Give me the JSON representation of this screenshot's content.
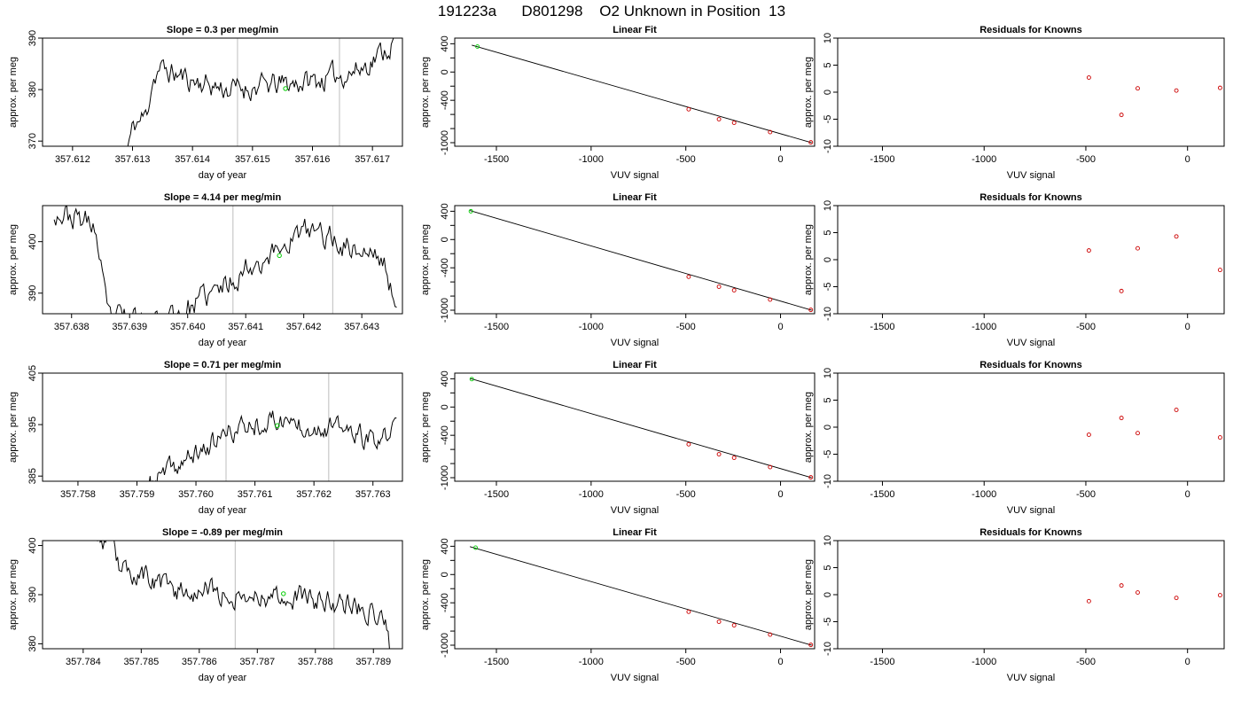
{
  "figure": {
    "suptitle": "191223a      D801298    O2 Unknown in Position  13",
    "colors": {
      "trace": "#000000",
      "marker_current": "#00cc00",
      "marker_known": "#cc0000",
      "gridline": "#c8c8c8"
    }
  },
  "chart_data": [
    {
      "type": "line",
      "row": 0,
      "col": 0,
      "title": "Slope =  0.3  per meg/min",
      "xlabel": "day of year",
      "ylabel": "approx. per meg",
      "xlim": [
        357.6115,
        357.6175
      ],
      "ylim": [
        369,
        390
      ],
      "xticks": [
        "357.612",
        "357.613",
        "357.614",
        "357.615",
        "357.616",
        "357.617"
      ],
      "yticks": [
        "370",
        "380",
        "390"
      ],
      "vlines": [
        357.61475,
        357.61645
      ],
      "marker": {
        "x": 357.61555,
        "y": 380.2
      },
      "trace": {
        "seed": 11,
        "x0": 357.6129,
        "x1": 357.61745,
        "n": 200,
        "vol": 1.2,
        "knots": [
          [
            357.6129,
            368
          ],
          [
            357.61302,
            373
          ],
          [
            357.61323,
            375
          ],
          [
            357.61333,
            382
          ],
          [
            357.61345,
            384
          ],
          [
            357.61395,
            382
          ],
          [
            357.6146,
            380
          ],
          [
            357.6155,
            381
          ],
          [
            357.6162,
            382
          ],
          [
            357.6168,
            384
          ],
          [
            357.61745,
            390
          ]
        ]
      }
    },
    {
      "type": "scatter_fit",
      "row": 0,
      "col": 1,
      "title": "Linear Fit",
      "xlabel": "VUV signal",
      "ylabel": "approx. per meg",
      "xlim": [
        -1720,
        180
      ],
      "ylim": [
        -1050,
        480
      ],
      "xticks": [
        "-1500",
        "-1000",
        "-500",
        "0"
      ],
      "yticks": [
        "-1000",
        "-400",
        "0",
        "400"
      ],
      "fit_line": [
        [
          -1630,
          380
        ],
        [
          165,
          -1000
        ]
      ],
      "points_known": [
        [
          -485,
          -527
        ],
        [
          -325,
          -668
        ],
        [
          -245,
          -718
        ],
        [
          -55,
          -850
        ],
        [
          160,
          -995
        ]
      ],
      "point_unknown": [
        -1600,
        360
      ]
    },
    {
      "type": "scatter",
      "row": 0,
      "col": 2,
      "title": "Residuals for Knowns",
      "xlabel": "VUV signal",
      "ylabel": "approx. per meg",
      "xlim": [
        -1720,
        180
      ],
      "ylim": [
        -10,
        10
      ],
      "xticks": [
        "-1500",
        "-1000",
        "-500",
        "0"
      ],
      "yticks": [
        "-10",
        "-5",
        "0",
        "5",
        "10"
      ],
      "points": [
        [
          -485,
          2.7
        ],
        [
          -325,
          -4.2
        ],
        [
          -245,
          0.7
        ],
        [
          -55,
          0.3
        ],
        [
          160,
          0.8
        ]
      ]
    },
    {
      "type": "line",
      "row": 1,
      "col": 0,
      "title": "Slope =  4.14  per meg/min",
      "xlabel": "day of year",
      "ylabel": "approx. per meg",
      "xlim": [
        357.6375,
        357.6437
      ],
      "ylim": [
        386,
        407
      ],
      "xticks": [
        "357.638",
        "357.639",
        "357.640",
        "357.641",
        "357.642",
        "357.643"
      ],
      "yticks": [
        "390",
        "400"
      ],
      "vlines": [
        357.64078,
        357.6425
      ],
      "marker": {
        "x": 357.64158,
        "y": 397.3
      },
      "trace": {
        "seed": 23,
        "x0": 357.6377,
        "x1": 357.6436,
        "n": 220,
        "vol": 1.3,
        "knots": [
          [
            357.6377,
            406
          ],
          [
            357.6382,
            404
          ],
          [
            357.6384,
            403
          ],
          [
            357.6385,
            395
          ],
          [
            357.63862,
            385
          ],
          [
            357.6392,
            385
          ],
          [
            357.6396,
            385
          ],
          [
            357.6398,
            386
          ],
          [
            357.64,
            387
          ],
          [
            357.6403,
            389
          ],
          [
            357.6406,
            391
          ],
          [
            357.641,
            395
          ],
          [
            357.6415,
            398
          ],
          [
            357.6418,
            401
          ],
          [
            357.6422,
            402
          ],
          [
            357.6428,
            399
          ],
          [
            357.6433,
            397
          ],
          [
            357.64345,
            394
          ],
          [
            357.6436,
            385
          ]
        ]
      }
    },
    {
      "type": "scatter_fit",
      "row": 1,
      "col": 1,
      "title": "Linear Fit",
      "xlabel": "VUV signal",
      "ylabel": "approx. per meg",
      "xlim": [
        -1720,
        180
      ],
      "ylim": [
        -1050,
        480
      ],
      "xticks": [
        "-1500",
        "-1000",
        "-500",
        "0"
      ],
      "yticks": [
        "-1000",
        "-400",
        "0",
        "400"
      ],
      "fit_line": [
        [
          -1640,
          410
        ],
        [
          165,
          -1000
        ]
      ],
      "points_known": [
        [
          -485,
          -527
        ],
        [
          -325,
          -668
        ],
        [
          -245,
          -718
        ],
        [
          -55,
          -850
        ],
        [
          160,
          -995
        ]
      ],
      "point_unknown": [
        -1635,
        400
      ]
    },
    {
      "type": "scatter",
      "row": 1,
      "col": 2,
      "title": "Residuals for Knowns",
      "xlabel": "VUV signal",
      "ylabel": "approx. per meg",
      "xlim": [
        -1720,
        180
      ],
      "ylim": [
        -10,
        10
      ],
      "xticks": [
        "-1500",
        "-1000",
        "-500",
        "0"
      ],
      "yticks": [
        "-10",
        "-5",
        "0",
        "5",
        "10"
      ],
      "points": [
        [
          -485,
          1.7
        ],
        [
          -325,
          -5.8
        ],
        [
          -245,
          2.1
        ],
        [
          -55,
          4.3
        ],
        [
          160,
          -1.9
        ]
      ]
    },
    {
      "type": "line",
      "row": 2,
      "col": 0,
      "title": "Slope =  0.71  per meg/min",
      "xlabel": "day of year",
      "ylabel": "approx. per meg",
      "xlim": [
        357.7574,
        357.7635
      ],
      "ylim": [
        384,
        405
      ],
      "xticks": [
        "357.758",
        "357.759",
        "357.760",
        "357.761",
        "357.762",
        "357.763"
      ],
      "yticks": [
        "385",
        "395",
        "405"
      ],
      "vlines": [
        357.76051,
        357.76225
      ],
      "marker": {
        "x": 357.76138,
        "y": 394.8
      },
      "trace": {
        "seed": 37,
        "x0": 357.7592,
        "x1": 357.7634,
        "n": 190,
        "vol": 1.1,
        "knots": [
          [
            357.7592,
            383
          ],
          [
            357.7594,
            385
          ],
          [
            357.7597,
            387
          ],
          [
            357.7601,
            390
          ],
          [
            357.7605,
            393
          ],
          [
            357.7609,
            395
          ],
          [
            357.7614,
            396
          ],
          [
            357.7619,
            395
          ],
          [
            357.7625,
            394
          ],
          [
            357.7629,
            392
          ],
          [
            357.7631,
            391
          ],
          [
            357.7634,
            395
          ]
        ]
      }
    },
    {
      "type": "scatter_fit",
      "row": 2,
      "col": 1,
      "title": "Linear Fit",
      "xlabel": "VUV signal",
      "ylabel": "approx. per meg",
      "xlim": [
        -1720,
        180
      ],
      "ylim": [
        -1050,
        480
      ],
      "xticks": [
        "-1500",
        "-1000",
        "-500",
        "0"
      ],
      "yticks": [
        "-1000",
        "-400",
        "0",
        "400"
      ],
      "fit_line": [
        [
          -1640,
          405
        ],
        [
          165,
          -1000
        ]
      ],
      "points_known": [
        [
          -485,
          -527
        ],
        [
          -325,
          -668
        ],
        [
          -245,
          -718
        ],
        [
          -55,
          -850
        ],
        [
          160,
          -995
        ]
      ],
      "point_unknown": [
        -1630,
        395
      ]
    },
    {
      "type": "scatter",
      "row": 2,
      "col": 2,
      "title": "Residuals for Knowns",
      "xlabel": "VUV signal",
      "ylabel": "approx. per meg",
      "xlim": [
        -1720,
        180
      ],
      "ylim": [
        -10,
        10
      ],
      "xticks": [
        "-1500",
        "-1000",
        "-500",
        "0"
      ],
      "yticks": [
        "-10",
        "-5",
        "0",
        "5",
        "10"
      ],
      "points": [
        [
          -485,
          -1.4
        ],
        [
          -325,
          1.7
        ],
        [
          -245,
          -1.1
        ],
        [
          -55,
          3.2
        ],
        [
          160,
          -1.9
        ]
      ]
    },
    {
      "type": "line",
      "row": 3,
      "col": 0,
      "title": "Slope =  -0.89  per meg/min",
      "xlabel": "day of year",
      "ylabel": "approx. per meg",
      "xlim": [
        357.7833,
        357.7895
      ],
      "ylim": [
        379,
        401
      ],
      "xticks": [
        "357.784",
        "357.785",
        "357.786",
        "357.787",
        "357.788",
        "357.789"
      ],
      "yticks": [
        "380",
        "390",
        "400"
      ],
      "vlines": [
        357.78662,
        357.78832
      ],
      "marker": {
        "x": 357.78745,
        "y": 390.2
      },
      "trace": {
        "seed": 53,
        "x0": 357.7842,
        "x1": 357.7893,
        "n": 220,
        "vol": 1.2,
        "knots": [
          [
            357.7842,
            403
          ],
          [
            357.7845,
            399
          ],
          [
            357.78465,
            395
          ],
          [
            357.785,
            394
          ],
          [
            357.7855,
            391
          ],
          [
            357.786,
            391
          ],
          [
            357.7866,
            390
          ],
          [
            357.7873,
            390
          ],
          [
            357.788,
            389
          ],
          [
            357.7887,
            388
          ],
          [
            357.7891,
            386
          ],
          [
            357.78925,
            384
          ],
          [
            357.7893,
            378
          ]
        ]
      }
    },
    {
      "type": "scatter_fit",
      "row": 3,
      "col": 1,
      "title": "Linear Fit",
      "xlabel": "VUV signal",
      "ylabel": "approx. per meg",
      "xlim": [
        -1720,
        180
      ],
      "ylim": [
        -1050,
        480
      ],
      "xticks": [
        "-1500",
        "-1000",
        "-500",
        "0"
      ],
      "yticks": [
        "-1000",
        "-400",
        "0",
        "400"
      ],
      "fit_line": [
        [
          -1640,
          395
        ],
        [
          165,
          -1000
        ]
      ],
      "points_known": [
        [
          -485,
          -527
        ],
        [
          -325,
          -668
        ],
        [
          -245,
          -718
        ],
        [
          -55,
          -850
        ],
        [
          160,
          -995
        ]
      ],
      "point_unknown": [
        -1610,
        380
      ]
    },
    {
      "type": "scatter",
      "row": 3,
      "col": 2,
      "title": "Residuals for Knowns",
      "xlabel": "VUV signal",
      "ylabel": "approx. per meg",
      "xlim": [
        -1720,
        180
      ],
      "ylim": [
        -10,
        10
      ],
      "xticks": [
        "-1500",
        "-1000",
        "-500",
        "0"
      ],
      "yticks": [
        "-10",
        "-5",
        "0",
        "5",
        "10"
      ],
      "points": [
        [
          -485,
          -1.2
        ],
        [
          -325,
          1.7
        ],
        [
          -245,
          0.4
        ],
        [
          -55,
          -0.6
        ],
        [
          160,
          -0.1
        ]
      ]
    }
  ]
}
